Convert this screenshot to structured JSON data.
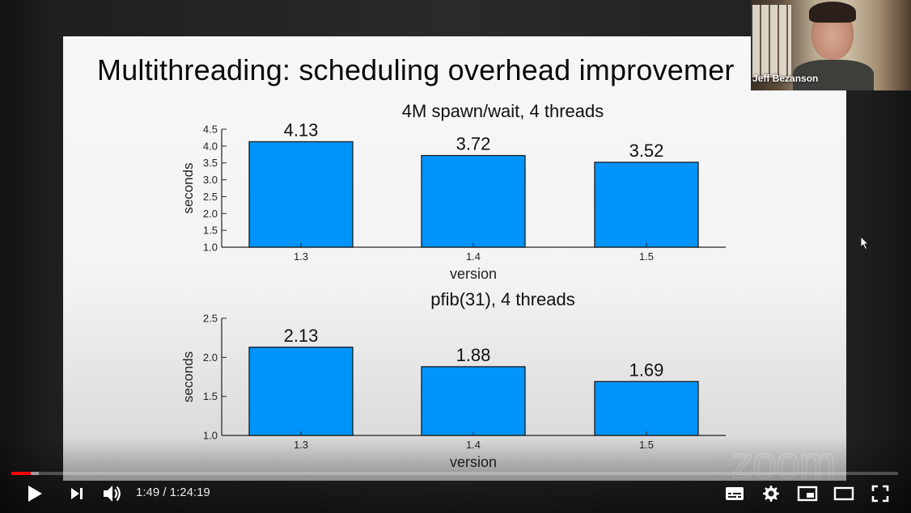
{
  "slide": {
    "title": "Multithreading: scheduling overhead improvemer"
  },
  "chart_data": [
    {
      "type": "bar",
      "title": "4M spawn/wait, 4 threads",
      "categories": [
        "1.3",
        "1.4",
        "1.5"
      ],
      "values": [
        4.13,
        3.72,
        3.52
      ],
      "value_labels": [
        "4.13",
        "3.72",
        "3.52"
      ],
      "xlabel": "version",
      "ylabel": "seconds",
      "ylim": [
        1.0,
        4.5
      ],
      "yticks": [
        "1.0",
        "1.5",
        "2.0",
        "2.5",
        "3.0",
        "3.5",
        "4.0",
        "4.5"
      ],
      "bar_color": "#0094fa",
      "grid": false
    },
    {
      "type": "bar",
      "title": "pfib(31), 4 threads",
      "categories": [
        "1.3",
        "1.4",
        "1.5"
      ],
      "values": [
        2.13,
        1.88,
        1.69
      ],
      "value_labels": [
        "2.13",
        "1.88",
        "1.69"
      ],
      "xlabel": "version",
      "ylabel": "seconds",
      "ylim": [
        1.0,
        2.5
      ],
      "yticks": [
        "1.0",
        "1.5",
        "2.0",
        "2.5"
      ],
      "bar_color": "#0094fa",
      "grid": false
    }
  ],
  "webcam": {
    "participant_name": "Jeff Bezanson"
  },
  "watermark": {
    "text": "zoom"
  },
  "player": {
    "progress_played": 0.022,
    "progress_loaded": 0.031,
    "accent_color": "#ff0000",
    "time": {
      "current": "1:49",
      "separator": " / ",
      "total": "1:24:19"
    },
    "icons": {
      "play": "play-icon",
      "next": "skip-next-icon",
      "volume": "volume-icon",
      "subtitles": "subtitles-icon",
      "settings": "gear-icon",
      "miniplayer": "miniplayer-icon",
      "theater": "theater-mode-icon",
      "fullscreen": "fullscreen-icon"
    }
  }
}
